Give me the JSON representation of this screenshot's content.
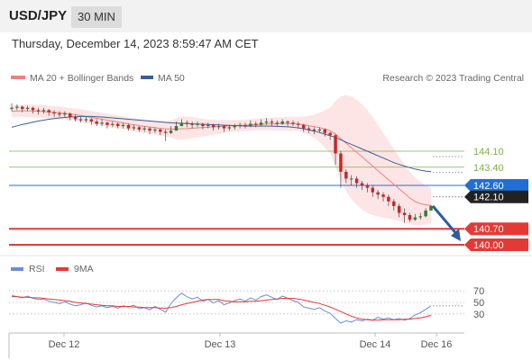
{
  "header": {
    "symbol": "USD/JPY",
    "timeframe": "30 MIN"
  },
  "timestamp": "Thursday, December 14, 2023 8:59:47 AM CET",
  "legend": {
    "ma20": "MA 20 + Bollinger Bands",
    "ma50": "MA 50",
    "research": "Research © 2023 Trading Central",
    "rsi": "RSI",
    "ma9": "9MA"
  },
  "colors": {
    "up": "#2e7d32",
    "down": "#c62828",
    "ma20": "#f08080",
    "band": "#fde0e0",
    "ma50": "#3a5d9c",
    "resistance": "#7cb342",
    "current": "#1f6fd6",
    "support": "#e53935",
    "price_tag": "#222222",
    "rsi": "#6a8fd8",
    "arrow": "#2e5d9c"
  },
  "chart_data": [
    {
      "type": "candlestick",
      "title": "USD/JPY 30 MIN",
      "ylim": [
        139.75,
        146.55
      ],
      "xlabels": [
        "Dec 12",
        "Dec 13",
        "Dec 14",
        "Dec 16"
      ],
      "levels": [
        {
          "value": 144.1,
          "label": "144.10",
          "kind": "resistance"
        },
        {
          "value": 143.4,
          "label": "143.40",
          "kind": "resistance"
        },
        {
          "value": 142.6,
          "label": "142.60",
          "kind": "current"
        },
        {
          "value": 142.1,
          "label": "142.10",
          "kind": "price"
        },
        {
          "value": 140.7,
          "label": "140.70",
          "kind": "support"
        },
        {
          "value": 140.0,
          "label": "140.00",
          "kind": "support"
        }
      ],
      "close": [
        146.0,
        146.05,
        145.95,
        146.0,
        145.9,
        145.85,
        145.9,
        145.8,
        145.75,
        145.7,
        145.75,
        145.6,
        145.5,
        145.45,
        145.5,
        145.4,
        145.3,
        145.35,
        145.25,
        145.3,
        145.2,
        145.25,
        145.1,
        145.15,
        145.05,
        145.1,
        145.0,
        145.05,
        144.95,
        144.9,
        145.0,
        145.2,
        145.35,
        145.3,
        145.25,
        145.3,
        145.2,
        145.25,
        145.15,
        145.2,
        145.1,
        145.15,
        145.2,
        145.25,
        145.2,
        145.3,
        145.25,
        145.35,
        145.4,
        145.35,
        145.3,
        145.4,
        145.35,
        145.3,
        145.25,
        145.1,
        145.05,
        145.0,
        145.05,
        144.9,
        144.8,
        144.0,
        143.2,
        142.9,
        142.9,
        142.7,
        142.6,
        142.5,
        142.3,
        142.2,
        142.1,
        141.9,
        141.7,
        141.4,
        141.3,
        141.1,
        141.2,
        141.25,
        141.5,
        141.7
      ],
      "high": [
        146.2,
        146.15,
        146.1,
        146.1,
        146.05,
        146.0,
        146.0,
        145.95,
        145.9,
        145.85,
        145.85,
        145.8,
        145.7,
        145.6,
        145.6,
        145.55,
        145.5,
        145.5,
        145.4,
        145.4,
        145.35,
        145.35,
        145.3,
        145.25,
        145.2,
        145.2,
        145.15,
        145.15,
        145.1,
        145.05,
        145.2,
        145.4,
        145.5,
        145.45,
        145.4,
        145.4,
        145.35,
        145.35,
        145.3,
        145.3,
        145.25,
        145.25,
        145.3,
        145.35,
        145.35,
        145.45,
        145.4,
        145.5,
        145.55,
        145.5,
        145.45,
        145.5,
        145.45,
        145.45,
        145.4,
        145.3,
        145.2,
        145.15,
        145.15,
        145.1,
        144.95,
        144.85,
        144.1,
        143.3,
        143.05,
        143.0,
        142.8,
        142.7,
        142.6,
        142.4,
        142.3,
        142.2,
        142.0,
        141.8,
        141.6,
        141.4,
        141.35,
        141.4,
        141.6,
        141.75
      ],
      "low": [
        145.85,
        145.9,
        145.8,
        145.85,
        145.75,
        145.7,
        145.75,
        145.65,
        145.6,
        145.6,
        145.6,
        145.45,
        145.4,
        145.35,
        145.35,
        145.25,
        145.2,
        145.2,
        145.1,
        145.15,
        145.1,
        145.1,
        145.0,
        145.0,
        144.95,
        144.95,
        144.85,
        144.9,
        144.8,
        144.55,
        144.85,
        145.0,
        145.2,
        145.15,
        145.1,
        145.15,
        145.05,
        145.1,
        145.0,
        145.05,
        144.95,
        145.0,
        145.05,
        145.1,
        145.1,
        145.15,
        145.15,
        145.2,
        145.25,
        145.2,
        145.2,
        145.25,
        145.2,
        145.2,
        145.1,
        144.95,
        144.9,
        144.85,
        144.9,
        144.75,
        144.6,
        143.5,
        142.5,
        142.7,
        142.6,
        142.5,
        142.4,
        142.3,
        142.1,
        142.0,
        141.9,
        141.7,
        141.5,
        141.2,
        140.95,
        141.0,
        141.05,
        141.1,
        141.2,
        141.5
      ],
      "ma20": [
        145.85,
        145.86,
        145.87,
        145.87,
        145.86,
        145.85,
        145.84,
        145.82,
        145.8,
        145.78,
        145.76,
        145.73,
        145.7,
        145.66,
        145.62,
        145.58,
        145.54,
        145.5,
        145.46,
        145.42,
        145.38,
        145.34,
        145.3,
        145.26,
        145.22,
        145.19,
        145.16,
        145.13,
        145.1,
        145.08,
        145.07,
        145.07,
        145.08,
        145.09,
        145.11,
        145.12,
        145.14,
        145.15,
        145.17,
        145.18,
        145.2,
        145.21,
        145.22,
        145.23,
        145.24,
        145.26,
        145.27,
        145.28,
        145.29,
        145.3,
        145.3,
        145.31,
        145.31,
        145.3,
        145.29,
        145.26,
        145.22,
        145.18,
        145.13,
        145.07,
        145.0,
        144.85,
        144.65,
        144.45,
        144.25,
        144.05,
        143.85,
        143.65,
        143.45,
        143.25,
        143.05,
        142.85,
        142.65,
        142.45,
        142.25,
        142.05,
        141.9,
        141.8,
        141.75,
        141.72
      ],
      "upper_band": [
        146.1,
        146.12,
        146.13,
        146.14,
        146.14,
        146.13,
        146.12,
        146.1,
        146.08,
        146.06,
        146.03,
        146.0,
        145.97,
        145.94,
        145.9,
        145.86,
        145.82,
        145.78,
        145.74,
        145.7,
        145.66,
        145.62,
        145.58,
        145.55,
        145.52,
        145.49,
        145.46,
        145.44,
        145.42,
        145.41,
        145.45,
        145.55,
        145.62,
        145.62,
        145.6,
        145.56,
        145.52,
        145.49,
        145.48,
        145.47,
        145.47,
        145.47,
        145.47,
        145.48,
        145.49,
        145.5,
        145.52,
        145.54,
        145.56,
        145.58,
        145.59,
        145.6,
        145.61,
        145.61,
        145.6,
        145.62,
        145.65,
        145.7,
        145.78,
        145.9,
        146.0,
        146.3,
        146.5,
        146.55,
        146.5,
        146.35,
        146.15,
        145.9,
        145.6,
        145.25,
        144.9,
        144.55,
        144.2,
        143.85,
        143.5,
        143.2,
        142.95,
        142.75,
        142.6,
        142.5
      ],
      "lower_band": [
        145.6,
        145.6,
        145.61,
        145.6,
        145.58,
        145.57,
        145.56,
        145.54,
        145.52,
        145.5,
        145.49,
        145.46,
        145.43,
        145.38,
        145.34,
        145.3,
        145.26,
        145.22,
        145.18,
        145.14,
        145.1,
        145.06,
        145.02,
        144.97,
        144.92,
        144.89,
        144.86,
        144.82,
        144.78,
        144.75,
        144.7,
        144.62,
        144.6,
        144.62,
        144.66,
        144.7,
        144.74,
        144.78,
        144.82,
        144.86,
        144.9,
        144.93,
        144.95,
        144.97,
        144.98,
        145.0,
        145.01,
        145.02,
        145.02,
        145.02,
        145.01,
        145.01,
        145.0,
        144.99,
        144.98,
        144.9,
        144.8,
        144.68,
        144.5,
        144.25,
        144.0,
        143.4,
        142.8,
        142.35,
        142.0,
        141.75,
        141.55,
        141.4,
        141.3,
        141.25,
        141.2,
        141.15,
        141.1,
        141.05,
        141.0,
        140.9,
        140.85,
        140.85,
        140.9,
        140.95
      ],
      "ma50": [
        145.15,
        145.21,
        145.27,
        145.32,
        145.37,
        145.42,
        145.46,
        145.5,
        145.53,
        145.56,
        145.58,
        145.6,
        145.61,
        145.62,
        145.62,
        145.62,
        145.61,
        145.6,
        145.58,
        145.56,
        145.54,
        145.52,
        145.5,
        145.48,
        145.46,
        145.44,
        145.42,
        145.4,
        145.38,
        145.36,
        145.34,
        145.33,
        145.32,
        145.31,
        145.3,
        145.29,
        145.28,
        145.27,
        145.26,
        145.25,
        145.24,
        145.23,
        145.22,
        145.21,
        145.2,
        145.2,
        145.2,
        145.2,
        145.2,
        145.2,
        145.19,
        145.18,
        145.17,
        145.15,
        145.12,
        145.08,
        145.03,
        144.98,
        144.92,
        144.85,
        144.78,
        144.7,
        144.6,
        144.5,
        144.4,
        144.3,
        144.2,
        144.1,
        144.0,
        143.9,
        143.8,
        143.7,
        143.6,
        143.52,
        143.45,
        143.38,
        143.32,
        143.27,
        143.23,
        143.2
      ]
    },
    {
      "type": "line",
      "title": "RSI",
      "ylim": [
        0,
        100
      ],
      "levels": [
        70,
        50,
        30
      ],
      "series": [
        {
          "name": "RSI",
          "values": [
            62,
            60,
            58,
            61,
            57,
            55,
            56,
            52,
            50,
            48,
            51,
            47,
            44,
            46,
            49,
            45,
            42,
            44,
            41,
            43,
            40,
            44,
            42,
            45,
            39,
            41,
            37,
            43,
            38,
            33,
            48,
            58,
            66,
            60,
            56,
            59,
            52,
            55,
            49,
            53,
            46,
            49,
            53,
            56,
            52,
            58,
            54,
            60,
            63,
            59,
            55,
            61,
            57,
            53,
            50,
            42,
            40,
            38,
            41,
            35,
            31,
            22,
            14,
            18,
            16,
            20,
            18,
            21,
            19,
            24,
            21,
            23,
            20,
            22,
            19,
            22,
            28,
            32,
            38,
            44
          ]
        },
        {
          "name": "9MA",
          "values": [
            60,
            60,
            59,
            59,
            58,
            58,
            57,
            56,
            55,
            54,
            53,
            52,
            50,
            49,
            48,
            47,
            46,
            45,
            44,
            44,
            43,
            43,
            43,
            42,
            42,
            41,
            41,
            41,
            40,
            40,
            41,
            43,
            46,
            48,
            50,
            52,
            54,
            55,
            55,
            55,
            53,
            52,
            51,
            51,
            51,
            52,
            52,
            53,
            54,
            55,
            56,
            57,
            57,
            57,
            56,
            54,
            52,
            50,
            48,
            45,
            42,
            38,
            34,
            30,
            26,
            23,
            21,
            20,
            19,
            19,
            20,
            20,
            20,
            20,
            21,
            21,
            22,
            23,
            25,
            28
          ]
        }
      ]
    }
  ]
}
